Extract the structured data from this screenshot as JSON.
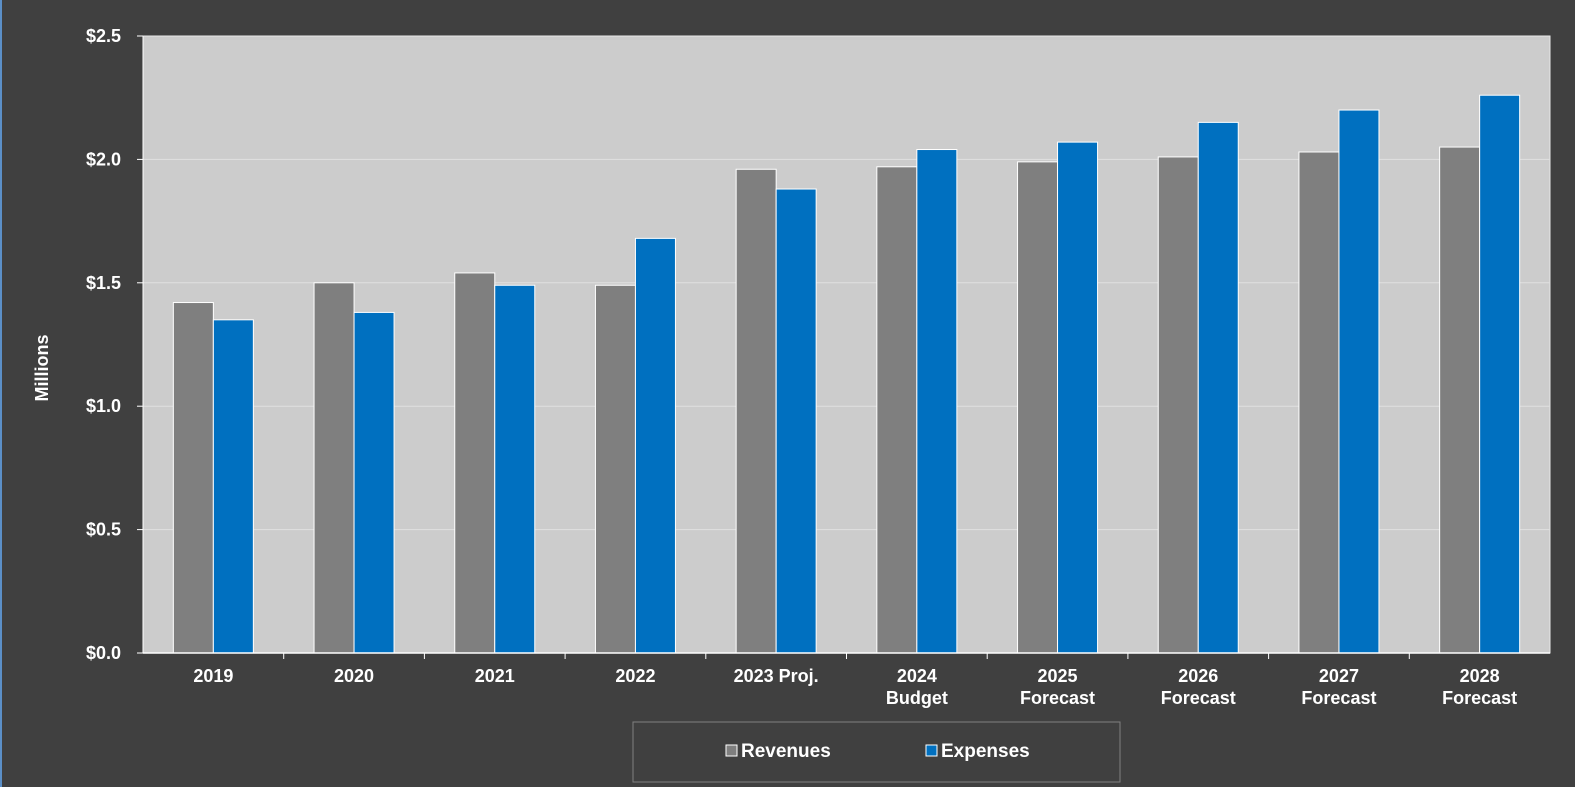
{
  "chart_data": {
    "type": "bar",
    "title": "",
    "ylabel": "Millions",
    "xlabel": "",
    "ylim": [
      0,
      2.5
    ],
    "yticks": [
      "$0.0",
      "$0.5",
      "$1.0",
      "$1.5",
      "$2.0",
      "$2.5"
    ],
    "ytick_values": [
      0,
      0.5,
      1.0,
      1.5,
      2.0,
      2.5
    ],
    "grid": true,
    "legend_position": "bottom",
    "categories": [
      [
        "2019"
      ],
      [
        "2020"
      ],
      [
        "2021"
      ],
      [
        "2022"
      ],
      [
        "2023 Proj."
      ],
      [
        "2024",
        "Budget"
      ],
      [
        "2025",
        "Forecast"
      ],
      [
        "2026",
        "Forecast"
      ],
      [
        "2027",
        "Forecast"
      ],
      [
        "2028",
        "Forecast"
      ]
    ],
    "series": [
      {
        "name": "Revenues",
        "color": "#7f7f7f",
        "values": [
          1.42,
          1.5,
          1.54,
          1.49,
          1.96,
          1.97,
          1.99,
          2.01,
          2.03,
          2.05
        ]
      },
      {
        "name": "Expenses",
        "color": "#0070c0",
        "values": [
          1.35,
          1.38,
          1.49,
          1.68,
          1.88,
          2.04,
          2.07,
          2.15,
          2.2,
          2.26
        ]
      }
    ]
  },
  "colors": {
    "background": "#404040",
    "plot_area": "#cccccc",
    "gridline": "#e0e0e0",
    "text": "#ffffff"
  }
}
